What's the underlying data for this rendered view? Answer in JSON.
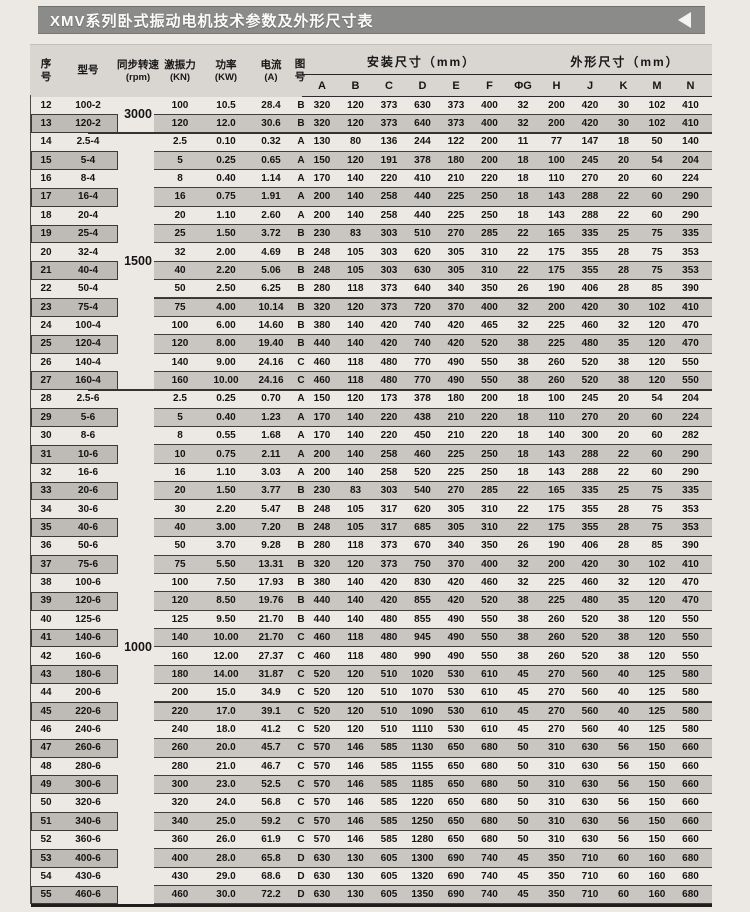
{
  "title_bar": {
    "title": "XMV系列卧式振动电机技术参数及外形尺寸表",
    "back_icon": "left-triangle"
  },
  "colors": {
    "page_bg": "#ece9e4",
    "title_bar_bg": "#8b8b89",
    "header_bg": "#d9d6d1",
    "row_shade": "#c9c6c1",
    "left_box_shade": "#bebbb6",
    "text": "#161616"
  },
  "table": {
    "header": {
      "serial_top": "序",
      "serial_bottom": "号",
      "model": "型号",
      "speed_l1": "同步转速",
      "speed_l2": "(rpm)",
      "force_l1": "激振力",
      "force_l2": "(KN)",
      "power_l1": "功率",
      "power_l2": "(KW)",
      "current_l1": "电流",
      "current_l2": "(A)",
      "drawing_top": "图",
      "drawing_bottom": "号",
      "install_group": "安装尺寸（mm）",
      "outline_group": "外形尺寸（mm）",
      "dim_letters": [
        "A",
        "B",
        "C",
        "D",
        "E",
        "F",
        "ΦG",
        "H",
        "J",
        "K",
        "M",
        "N"
      ]
    },
    "speed_groups": [
      {
        "rpm": "3000",
        "from_serial": 12,
        "to_serial": 13
      },
      {
        "rpm": "1500",
        "from_serial": 14,
        "to_serial": 27
      },
      {
        "rpm": "1000",
        "from_serial": 28,
        "to_serial": 55
      }
    ],
    "columns_order": [
      "serial",
      "model",
      "force_kn",
      "power_kw",
      "current_a",
      "drawing_no",
      "A",
      "B",
      "C",
      "D",
      "E",
      "F",
      "ΦG",
      "H",
      "J",
      "K",
      "M",
      "N"
    ],
    "rows": [
      [
        "12",
        "100-2",
        "100",
        "10.5",
        "28.4",
        "B",
        "320",
        "120",
        "373",
        "630",
        "373",
        "400",
        "32",
        "200",
        "420",
        "30",
        "102",
        "410"
      ],
      [
        "13",
        "120-2",
        "120",
        "12.0",
        "30.6",
        "B",
        "320",
        "120",
        "373",
        "640",
        "373",
        "400",
        "32",
        "200",
        "420",
        "30",
        "102",
        "410"
      ],
      [
        "14",
        "2.5-4",
        "2.5",
        "0.10",
        "0.32",
        "A",
        "130",
        "80",
        "136",
        "244",
        "122",
        "200",
        "11",
        "77",
        "147",
        "18",
        "50",
        "140"
      ],
      [
        "15",
        "5-4",
        "5",
        "0.25",
        "0.65",
        "A",
        "150",
        "120",
        "191",
        "378",
        "180",
        "200",
        "18",
        "100",
        "245",
        "20",
        "54",
        "204"
      ],
      [
        "16",
        "8-4",
        "8",
        "0.40",
        "1.14",
        "A",
        "170",
        "140",
        "220",
        "410",
        "210",
        "220",
        "18",
        "110",
        "270",
        "20",
        "60",
        "224"
      ],
      [
        "17",
        "16-4",
        "16",
        "0.75",
        "1.91",
        "A",
        "200",
        "140",
        "258",
        "440",
        "225",
        "250",
        "18",
        "143",
        "288",
        "22",
        "60",
        "290"
      ],
      [
        "18",
        "20-4",
        "20",
        "1.10",
        "2.60",
        "A",
        "200",
        "140",
        "258",
        "440",
        "225",
        "250",
        "18",
        "143",
        "288",
        "22",
        "60",
        "290"
      ],
      [
        "19",
        "25-4",
        "25",
        "1.50",
        "3.72",
        "B",
        "230",
        "83",
        "303",
        "510",
        "270",
        "285",
        "22",
        "165",
        "335",
        "25",
        "75",
        "335"
      ],
      [
        "20",
        "32-4",
        "32",
        "2.00",
        "4.69",
        "B",
        "248",
        "105",
        "303",
        "620",
        "305",
        "310",
        "22",
        "175",
        "355",
        "28",
        "75",
        "353"
      ],
      [
        "21",
        "40-4",
        "40",
        "2.20",
        "5.06",
        "B",
        "248",
        "105",
        "303",
        "630",
        "305",
        "310",
        "22",
        "175",
        "355",
        "28",
        "75",
        "353"
      ],
      [
        "22",
        "50-4",
        "50",
        "2.50",
        "6.25",
        "B",
        "280",
        "118",
        "373",
        "640",
        "340",
        "350",
        "26",
        "190",
        "406",
        "28",
        "85",
        "390"
      ],
      [
        "23",
        "75-4",
        "75",
        "4.00",
        "10.14",
        "B",
        "320",
        "120",
        "373",
        "720",
        "370",
        "400",
        "32",
        "200",
        "420",
        "30",
        "102",
        "410"
      ],
      [
        "24",
        "100-4",
        "100",
        "6.00",
        "14.60",
        "B",
        "380",
        "140",
        "420",
        "740",
        "420",
        "465",
        "32",
        "225",
        "460",
        "32",
        "120",
        "470"
      ],
      [
        "25",
        "120-4",
        "120",
        "8.00",
        "19.40",
        "B",
        "440",
        "140",
        "420",
        "740",
        "420",
        "520",
        "38",
        "225",
        "480",
        "35",
        "120",
        "470"
      ],
      [
        "26",
        "140-4",
        "140",
        "9.00",
        "24.16",
        "C",
        "460",
        "118",
        "480",
        "770",
        "490",
        "550",
        "38",
        "260",
        "520",
        "38",
        "120",
        "550"
      ],
      [
        "27",
        "160-4",
        "160",
        "10.00",
        "24.16",
        "C",
        "460",
        "118",
        "480",
        "770",
        "490",
        "550",
        "38",
        "260",
        "520",
        "38",
        "120",
        "550"
      ],
      [
        "28",
        "2.5-6",
        "2.5",
        "0.25",
        "0.70",
        "A",
        "150",
        "120",
        "173",
        "378",
        "180",
        "200",
        "18",
        "100",
        "245",
        "20",
        "54",
        "204"
      ],
      [
        "29",
        "5-6",
        "5",
        "0.40",
        "1.23",
        "A",
        "170",
        "140",
        "220",
        "438",
        "210",
        "220",
        "18",
        "110",
        "270",
        "20",
        "60",
        "224"
      ],
      [
        "30",
        "8-6",
        "8",
        "0.55",
        "1.68",
        "A",
        "170",
        "140",
        "220",
        "450",
        "210",
        "220",
        "18",
        "140",
        "300",
        "20",
        "60",
        "282"
      ],
      [
        "31",
        "10-6",
        "10",
        "0.75",
        "2.11",
        "A",
        "200",
        "140",
        "258",
        "460",
        "225",
        "250",
        "18",
        "143",
        "288",
        "22",
        "60",
        "290"
      ],
      [
        "32",
        "16-6",
        "16",
        "1.10",
        "3.03",
        "A",
        "200",
        "140",
        "258",
        "520",
        "225",
        "250",
        "18",
        "143",
        "288",
        "22",
        "60",
        "290"
      ],
      [
        "33",
        "20-6",
        "20",
        "1.50",
        "3.77",
        "B",
        "230",
        "83",
        "303",
        "540",
        "270",
        "285",
        "22",
        "165",
        "335",
        "25",
        "75",
        "335"
      ],
      [
        "34",
        "30-6",
        "30",
        "2.20",
        "5.47",
        "B",
        "248",
        "105",
        "317",
        "620",
        "305",
        "310",
        "22",
        "175",
        "355",
        "28",
        "75",
        "353"
      ],
      [
        "35",
        "40-6",
        "40",
        "3.00",
        "7.20",
        "B",
        "248",
        "105",
        "317",
        "685",
        "305",
        "310",
        "22",
        "175",
        "355",
        "28",
        "75",
        "353"
      ],
      [
        "36",
        "50-6",
        "50",
        "3.70",
        "9.28",
        "B",
        "280",
        "118",
        "373",
        "670",
        "340",
        "350",
        "26",
        "190",
        "406",
        "28",
        "85",
        "390"
      ],
      [
        "37",
        "75-6",
        "75",
        "5.50",
        "13.31",
        "B",
        "320",
        "120",
        "373",
        "750",
        "370",
        "400",
        "32",
        "200",
        "420",
        "30",
        "102",
        "410"
      ],
      [
        "38",
        "100-6",
        "100",
        "7.50",
        "17.93",
        "B",
        "380",
        "140",
        "420",
        "830",
        "420",
        "460",
        "32",
        "225",
        "460",
        "32",
        "120",
        "470"
      ],
      [
        "39",
        "120-6",
        "120",
        "8.50",
        "19.76",
        "B",
        "440",
        "140",
        "420",
        "855",
        "420",
        "520",
        "38",
        "225",
        "480",
        "35",
        "120",
        "470"
      ],
      [
        "40",
        "125-6",
        "125",
        "9.50",
        "21.70",
        "B",
        "440",
        "140",
        "480",
        "855",
        "490",
        "550",
        "38",
        "260",
        "520",
        "38",
        "120",
        "550"
      ],
      [
        "41",
        "140-6",
        "140",
        "10.00",
        "21.70",
        "C",
        "460",
        "118",
        "480",
        "945",
        "490",
        "550",
        "38",
        "260",
        "520",
        "38",
        "120",
        "550"
      ],
      [
        "42",
        "160-6",
        "160",
        "12.00",
        "27.37",
        "C",
        "460",
        "118",
        "480",
        "990",
        "490",
        "550",
        "38",
        "260",
        "520",
        "38",
        "120",
        "550"
      ],
      [
        "43",
        "180-6",
        "180",
        "14.00",
        "31.87",
        "C",
        "520",
        "120",
        "510",
        "1020",
        "530",
        "610",
        "45",
        "270",
        "560",
        "40",
        "125",
        "580"
      ],
      [
        "44",
        "200-6",
        "200",
        "15.0",
        "34.9",
        "C",
        "520",
        "120",
        "510",
        "1070",
        "530",
        "610",
        "45",
        "270",
        "560",
        "40",
        "125",
        "580"
      ],
      [
        "45",
        "220-6",
        "220",
        "17.0",
        "39.1",
        "C",
        "520",
        "120",
        "510",
        "1090",
        "530",
        "610",
        "45",
        "270",
        "560",
        "40",
        "125",
        "580"
      ],
      [
        "46",
        "240-6",
        "240",
        "18.0",
        "41.2",
        "C",
        "520",
        "120",
        "510",
        "1110",
        "530",
        "610",
        "45",
        "270",
        "560",
        "40",
        "125",
        "580"
      ],
      [
        "47",
        "260-6",
        "260",
        "20.0",
        "45.7",
        "C",
        "570",
        "146",
        "585",
        "1130",
        "650",
        "680",
        "50",
        "310",
        "630",
        "56",
        "150",
        "660"
      ],
      [
        "48",
        "280-6",
        "280",
        "21.0",
        "46.7",
        "C",
        "570",
        "146",
        "585",
        "1155",
        "650",
        "680",
        "50",
        "310",
        "630",
        "56",
        "150",
        "660"
      ],
      [
        "49",
        "300-6",
        "300",
        "23.0",
        "52.5",
        "C",
        "570",
        "146",
        "585",
        "1185",
        "650",
        "680",
        "50",
        "310",
        "630",
        "56",
        "150",
        "660"
      ],
      [
        "50",
        "320-6",
        "320",
        "24.0",
        "56.8",
        "C",
        "570",
        "146",
        "585",
        "1220",
        "650",
        "680",
        "50",
        "310",
        "630",
        "56",
        "150",
        "660"
      ],
      [
        "51",
        "340-6",
        "340",
        "25.0",
        "59.2",
        "C",
        "570",
        "146",
        "585",
        "1250",
        "650",
        "680",
        "50",
        "310",
        "630",
        "56",
        "150",
        "660"
      ],
      [
        "52",
        "360-6",
        "360",
        "26.0",
        "61.9",
        "C",
        "570",
        "146",
        "585",
        "1280",
        "650",
        "680",
        "50",
        "310",
        "630",
        "56",
        "150",
        "660"
      ],
      [
        "53",
        "400-6",
        "400",
        "28.0",
        "65.8",
        "D",
        "630",
        "130",
        "605",
        "1300",
        "690",
        "740",
        "45",
        "350",
        "710",
        "60",
        "160",
        "680"
      ],
      [
        "54",
        "430-6",
        "430",
        "29.0",
        "68.6",
        "D",
        "630",
        "130",
        "605",
        "1320",
        "690",
        "740",
        "45",
        "350",
        "710",
        "60",
        "160",
        "680"
      ],
      [
        "55",
        "460-6",
        "460",
        "30.0",
        "72.2",
        "D",
        "630",
        "130",
        "605",
        "1350",
        "690",
        "740",
        "45",
        "350",
        "710",
        "60",
        "160",
        "680"
      ]
    ]
  }
}
